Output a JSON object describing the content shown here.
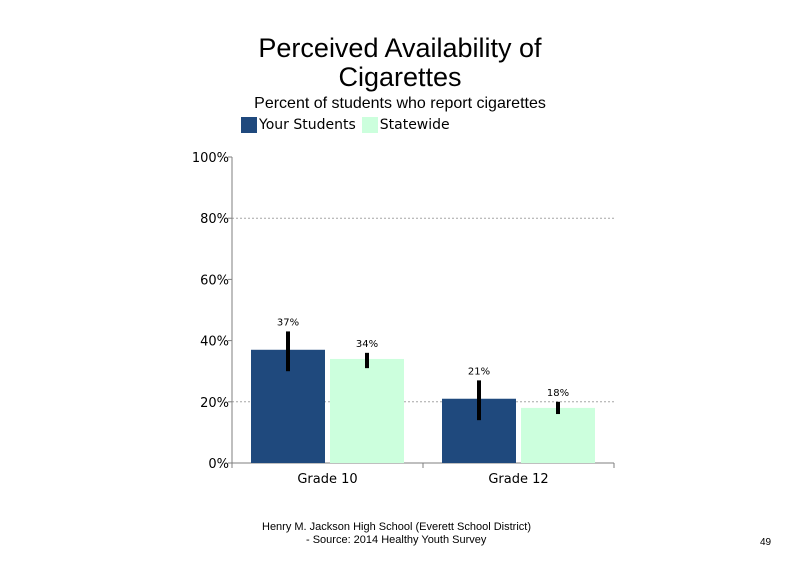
{
  "chart_data": {
    "type": "bar",
    "title": "Perceived Availability of Cigarettes",
    "title_lines": [
      "Perceived Availability of",
      "Cigarettes"
    ],
    "subtitle": "Percent of students who report cigarettes",
    "categories": [
      "Grade 10",
      "Grade 12"
    ],
    "series": [
      {
        "name": "Your Students",
        "color": "#1f497d",
        "values": [
          37,
          21
        ],
        "labels": [
          "37%",
          "21%"
        ],
        "error_low": [
          30,
          14
        ],
        "error_high": [
          43,
          27
        ]
      },
      {
        "name": "Statewide",
        "color": "#ccffdd",
        "values": [
          34,
          18
        ],
        "labels": [
          "34%",
          "18%"
        ],
        "error_low": [
          31,
          16
        ],
        "error_high": [
          36,
          20
        ]
      }
    ],
    "y_ticks": [
      "0%",
      "20%",
      "40%",
      "60%",
      "80%",
      "100%"
    ],
    "ylim": [
      0,
      100
    ],
    "grid": "dotted horizontal at 20, 80",
    "legend_position": "top-left"
  },
  "footer": {
    "line1": "Henry M. Jackson High School (Everett School District)",
    "line2": "- Source: 2014 Healthy Youth Survey"
  },
  "page_number": "49"
}
